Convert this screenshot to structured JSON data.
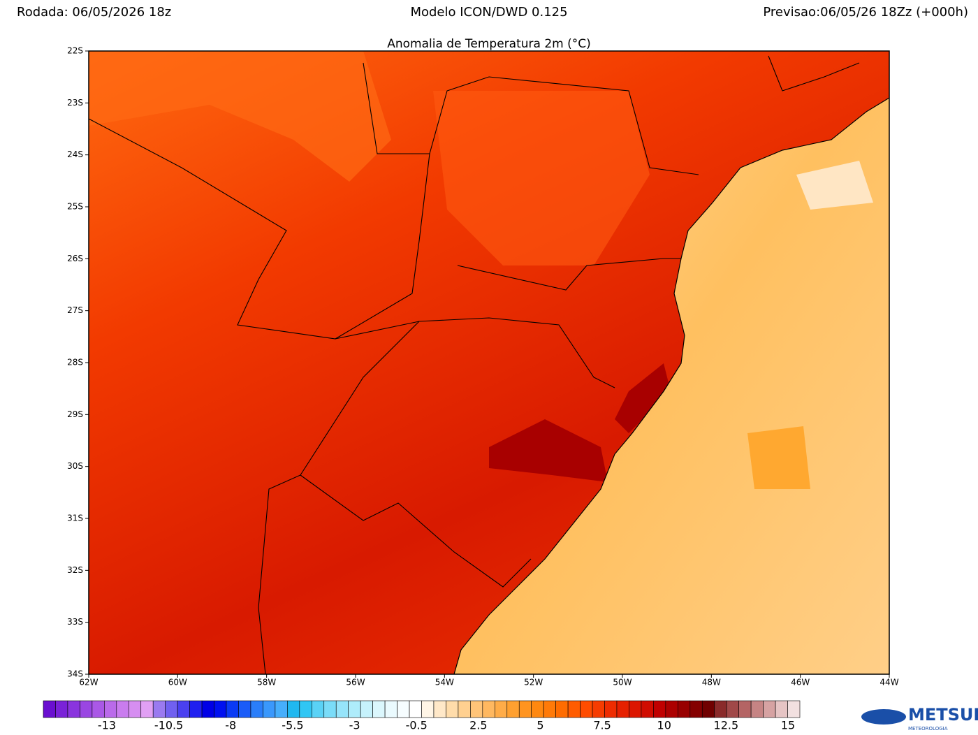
{
  "header": {
    "left": "Rodada: 06/05/2026 18z",
    "center": "Modelo ICON/DWD 0.125",
    "right": "Previsao:06/05/26 18Zz (+000h)"
  },
  "map": {
    "title": "Anomalia de Temperatura 2m (°C)",
    "lat_labels": [
      "22S",
      "23S",
      "24S",
      "25S",
      "26S",
      "27S",
      "28S",
      "29S",
      "30S",
      "31S",
      "32S",
      "33S",
      "34S"
    ],
    "lon_labels": [
      "62W",
      "60W",
      "58W",
      "56W",
      "54W",
      "52W",
      "50W",
      "48W",
      "46W",
      "44W"
    ]
  },
  "colorbar": {
    "labels": [
      "-13",
      "-10.5",
      "-8",
      "-5.5",
      "-3",
      "-0.5",
      "2.5",
      "5",
      "7.5",
      "10",
      "12.5",
      "15"
    ],
    "colors": [
      "#6a0fd0",
      "#7a22d8",
      "#8a34de",
      "#9a46e2",
      "#aa58e6",
      "#ba6aea",
      "#c97cee",
      "#d68ef1",
      "#e1a0f4",
      "#9a7af0",
      "#7060f0",
      "#4a40f0",
      "#2020f0",
      "#0000e6",
      "#0010f0",
      "#0a3af5",
      "#1a5cf8",
      "#2a7efa",
      "#3a98fc",
      "#46aefc",
      "#20b8f0",
      "#30c6f4",
      "#5ad2f6",
      "#7adcf8",
      "#96e4fa",
      "#aeecfb",
      "#c6f2fc",
      "#dbf7fd",
      "#eafafe",
      "#f6fdff",
      "#ffffff",
      "#fff5e6",
      "#ffe8c8",
      "#ffdcaa",
      "#ffd090",
      "#ffc478",
      "#ffb860",
      "#ffac48",
      "#ffa030",
      "#ff9420",
      "#ff8810",
      "#ff7a08",
      "#ff6c00",
      "#ff5c00",
      "#ff4c00",
      "#f63c00",
      "#ee2c00",
      "#e62000",
      "#dc1600",
      "#d00c00",
      "#c00000",
      "#ac0000",
      "#980000",
      "#840000",
      "#700000",
      "#8a2a2a",
      "#a04848",
      "#b46464",
      "#c68484",
      "#d6a2a2",
      "#e6c4c4",
      "#f2e0e0"
    ]
  },
  "logo": {
    "name": "METSUL",
    "sub": "METEOROLOGIA"
  }
}
